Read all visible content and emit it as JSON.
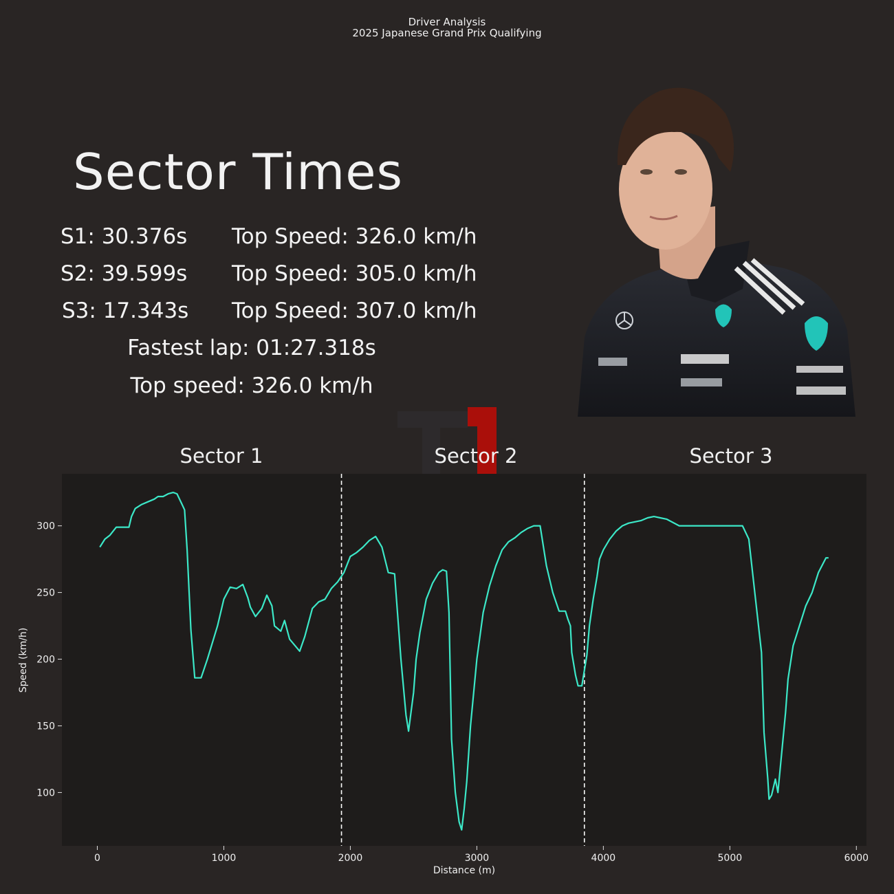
{
  "header": {
    "line1": "Driver Analysis",
    "line2": "2025 Japanese Grand Prix Qualifying"
  },
  "main_title": "Sector Times",
  "stats": {
    "s1": "S1: 30.376s",
    "s2": "S2: 39.599s",
    "s3": "S3: 17.343s",
    "top1": "Top Speed: 326.0 km/h",
    "top2": "Top Speed: 305.0 km/h",
    "top3": "Top Speed: 307.0 km/h",
    "fastest_lap": "Fastest lap: 01:27.318s",
    "top_speed": "Top speed: 326.0 km/h"
  },
  "sectors": [
    "Sector 1",
    "Sector 2",
    "Sector 3"
  ],
  "colors": {
    "background": "#292524",
    "plot_bg": "#1e1c1b",
    "line": "#3ce8c8",
    "logo": "#e10600"
  },
  "chart_data": {
    "type": "line",
    "xlabel": "Distance (m)",
    "ylabel": "Speed (km/h)",
    "xlim": [
      -280,
      6080
    ],
    "ylim": [
      60,
      339
    ],
    "xticks": [
      0,
      1000,
      2000,
      3000,
      4000,
      5000,
      6000
    ],
    "yticks": [
      100,
      150,
      200,
      250,
      300
    ],
    "sector_boundaries": [
      1930,
      3850
    ],
    "series": [
      {
        "name": "Speed",
        "x": [
          20,
          60,
          100,
          150,
          250,
          270,
          300,
          350,
          400,
          450,
          480,
          520,
          560,
          600,
          630,
          670,
          690,
          710,
          740,
          770,
          800,
          820,
          870,
          950,
          1000,
          1050,
          1100,
          1150,
          1190,
          1210,
          1250,
          1300,
          1340,
          1380,
          1400,
          1450,
          1480,
          1520,
          1600,
          1640,
          1700,
          1750,
          1800,
          1850,
          1900,
          1950,
          2000,
          2050,
          2100,
          2150,
          2200,
          2250,
          2300,
          2350,
          2400,
          2440,
          2460,
          2500,
          2520,
          2550,
          2600,
          2650,
          2700,
          2730,
          2760,
          2780,
          2800,
          2830,
          2860,
          2880,
          2900,
          2920,
          2950,
          3000,
          3050,
          3100,
          3150,
          3200,
          3250,
          3300,
          3350,
          3400,
          3450,
          3500,
          3550,
          3600,
          3650,
          3700,
          3720,
          3740,
          3750,
          3780,
          3800,
          3830,
          3870,
          3890,
          3920,
          3950,
          3970,
          4000,
          4050,
          4100,
          4150,
          4200,
          4250,
          4300,
          4350,
          4400,
          4450,
          4500,
          4600,
          4700,
          4800,
          4900,
          4950,
          5000,
          5050,
          5100,
          5150,
          5250,
          5270,
          5300,
          5310,
          5330,
          5360,
          5380,
          5400,
          5420,
          5440,
          5460,
          5500,
          5550,
          5600,
          5650,
          5700,
          5760,
          5780
        ],
        "values": [
          284,
          290,
          293,
          299,
          299,
          307,
          313,
          316,
          318,
          320,
          322,
          322,
          324,
          325,
          324,
          316,
          312,
          282,
          222,
          186,
          186,
          186,
          200,
          225,
          245,
          254,
          253,
          256,
          246,
          239,
          232,
          238,
          248,
          240,
          225,
          221,
          229,
          215,
          206,
          217,
          238,
          243,
          245,
          253,
          258,
          265,
          277,
          280,
          284,
          289,
          292,
          284,
          265,
          264,
          200,
          158,
          146,
          175,
          200,
          220,
          245,
          257,
          265,
          267,
          266,
          235,
          140,
          100,
          78,
          72,
          88,
          108,
          150,
          200,
          235,
          255,
          270,
          282,
          288,
          291,
          295,
          298,
          300,
          300,
          270,
          250,
          236,
          236,
          230,
          225,
          205,
          188,
          180,
          180,
          203,
          225,
          245,
          262,
          275,
          282,
          290,
          296,
          300,
          302,
          303,
          304,
          306,
          307,
          306,
          305,
          300,
          300,
          300,
          300,
          300,
          300,
          300,
          300,
          290,
          205,
          145,
          110,
          95,
          98,
          110,
          100,
          120,
          140,
          160,
          185,
          210,
          225,
          240,
          250,
          265,
          276,
          276
        ]
      }
    ]
  }
}
